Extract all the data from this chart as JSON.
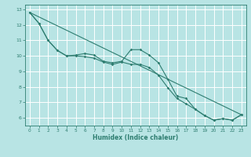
{
  "xlabel": "Humidex (Indice chaleur)",
  "bg_color": "#b8e4e4",
  "grid_color": "#ffffff",
  "line_color": "#2e7d70",
  "x_values": [
    0,
    1,
    2,
    3,
    4,
    5,
    6,
    7,
    8,
    9,
    10,
    11,
    12,
    13,
    14,
    15,
    16,
    17,
    18,
    19,
    20,
    21,
    22,
    23
  ],
  "line1_y": [
    12.8,
    12.1,
    11.0,
    10.35,
    10.0,
    10.05,
    10.15,
    10.05,
    9.65,
    9.55,
    9.65,
    10.4,
    10.4,
    10.05,
    9.55,
    8.5,
    7.4,
    7.25,
    6.55,
    6.15,
    5.85,
    5.95,
    5.85,
    6.2
  ],
  "line2_y": [
    12.8,
    12.1,
    11.0,
    10.35,
    10.0,
    10.0,
    9.95,
    9.85,
    9.6,
    9.45,
    9.6,
    9.45,
    9.45,
    9.25,
    8.75,
    7.95,
    7.25,
    6.9,
    6.55,
    6.15,
    5.85,
    5.95,
    5.85,
    6.2
  ],
  "trend_x": [
    0,
    23
  ],
  "trend_y": [
    12.8,
    6.2
  ],
  "ylim": [
    5.5,
    13.3
  ],
  "xlim": [
    -0.5,
    23.5
  ],
  "yticks": [
    6,
    7,
    8,
    9,
    10,
    11,
    12,
    13
  ],
  "xticks": [
    0,
    1,
    2,
    3,
    4,
    5,
    6,
    7,
    8,
    9,
    10,
    11,
    12,
    13,
    14,
    15,
    16,
    17,
    18,
    19,
    20,
    21,
    22,
    23
  ]
}
